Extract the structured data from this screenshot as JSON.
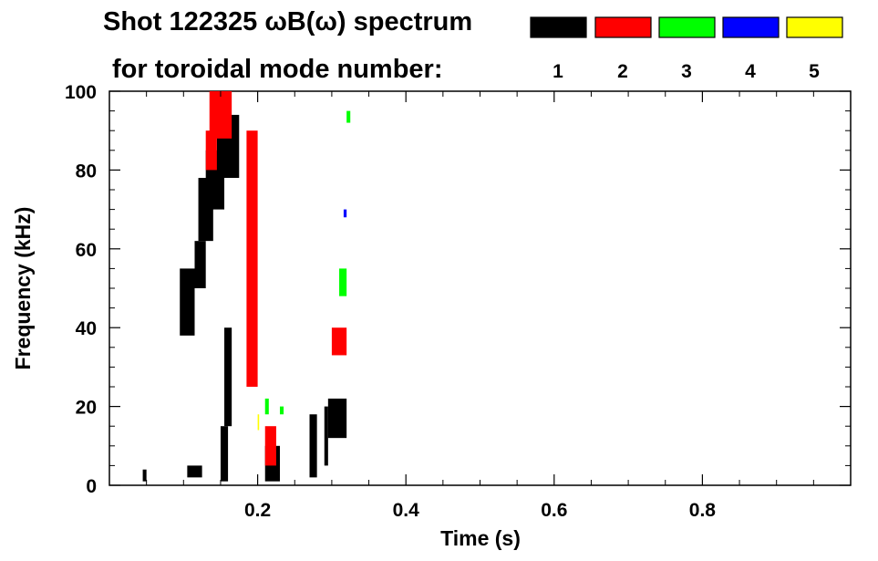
{
  "chart_data": {
    "type": "heatmap",
    "title_line1": "Shot 122325 ωB(ω) spectrum",
    "title_line2": "for toroidal mode number:",
    "xlabel": "Time (s)",
    "ylabel": "Frequency (kHz)",
    "xlim": [
      0.0,
      1.0
    ],
    "ylim": [
      0,
      100
    ],
    "x_ticks": [
      "0.2",
      "0.4",
      "0.6",
      "0.8"
    ],
    "y_ticks": [
      "0",
      "20",
      "40",
      "60",
      "80",
      "100"
    ],
    "legend": [
      {
        "label": "1",
        "color": "#000000"
      },
      {
        "label": "2",
        "color": "#ff0000"
      },
      {
        "label": "3",
        "color": "#00ff00"
      },
      {
        "label": "4",
        "color": "#0000ff"
      },
      {
        "label": "5",
        "color": "#ffff00"
      }
    ],
    "regions": [
      {
        "mode": 1,
        "t": [
          0.045,
          0.05
        ],
        "f": [
          1,
          4
        ]
      },
      {
        "mode": 1,
        "t": [
          0.105,
          0.125
        ],
        "f": [
          2,
          5
        ]
      },
      {
        "mode": 1,
        "t": [
          0.095,
          0.115
        ],
        "f": [
          38,
          55
        ]
      },
      {
        "mode": 1,
        "t": [
          0.115,
          0.13
        ],
        "f": [
          50,
          62
        ]
      },
      {
        "mode": 1,
        "t": [
          0.12,
          0.14
        ],
        "f": [
          62,
          78
        ]
      },
      {
        "mode": 1,
        "t": [
          0.13,
          0.155
        ],
        "f": [
          70,
          85
        ]
      },
      {
        "mode": 1,
        "t": [
          0.145,
          0.175
        ],
        "f": [
          78,
          94
        ]
      },
      {
        "mode": 1,
        "t": [
          0.15,
          0.16
        ],
        "f": [
          1,
          15
        ]
      },
      {
        "mode": 1,
        "t": [
          0.155,
          0.165
        ],
        "f": [
          15,
          40
        ]
      },
      {
        "mode": 1,
        "t": [
          0.21,
          0.23
        ],
        "f": [
          1,
          10
        ]
      },
      {
        "mode": 1,
        "t": [
          0.27,
          0.28
        ],
        "f": [
          2,
          18
        ]
      },
      {
        "mode": 1,
        "t": [
          0.29,
          0.295
        ],
        "f": [
          5,
          20
        ]
      },
      {
        "mode": 1,
        "t": [
          0.295,
          0.32
        ],
        "f": [
          12,
          22
        ]
      },
      {
        "mode": 2,
        "t": [
          0.135,
          0.165
        ],
        "f": [
          88,
          100
        ]
      },
      {
        "mode": 2,
        "t": [
          0.13,
          0.145
        ],
        "f": [
          80,
          90
        ]
      },
      {
        "mode": 2,
        "t": [
          0.185,
          0.2
        ],
        "f": [
          25,
          90
        ]
      },
      {
        "mode": 2,
        "t": [
          0.21,
          0.225
        ],
        "f": [
          5,
          15
        ]
      },
      {
        "mode": 2,
        "t": [
          0.3,
          0.32
        ],
        "f": [
          33,
          40
        ]
      },
      {
        "mode": 3,
        "t": [
          0.21,
          0.215
        ],
        "f": [
          18,
          22
        ]
      },
      {
        "mode": 3,
        "t": [
          0.23,
          0.235
        ],
        "f": [
          18,
          20
        ]
      },
      {
        "mode": 3,
        "t": [
          0.31,
          0.32
        ],
        "f": [
          48,
          55
        ]
      },
      {
        "mode": 3,
        "t": [
          0.32,
          0.325
        ],
        "f": [
          92,
          95
        ]
      },
      {
        "mode": 4,
        "t": [
          0.316,
          0.32
        ],
        "f": [
          68,
          70
        ]
      },
      {
        "mode": 5,
        "t": [
          0.2,
          0.202
        ],
        "f": [
          14,
          18
        ]
      }
    ]
  }
}
